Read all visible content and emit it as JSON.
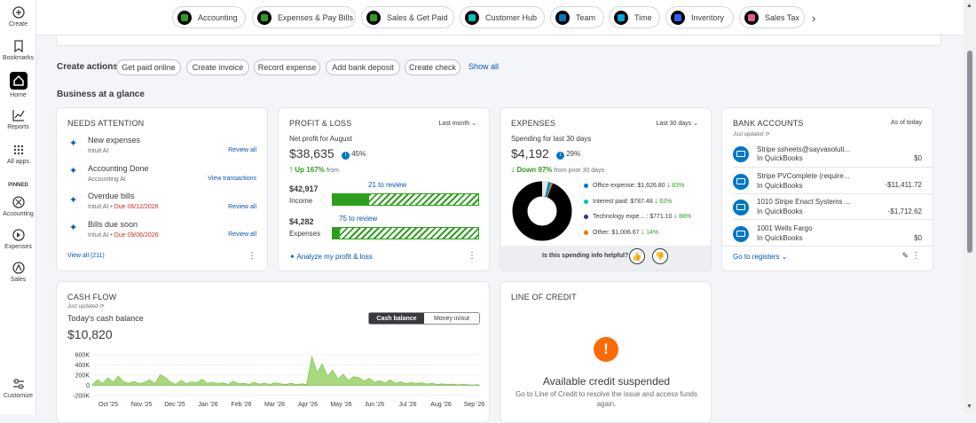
{
  "sidebar": {
    "items": [
      {
        "label": "Create",
        "icon": "plus-circle-icon"
      },
      {
        "label": "Bookmarks",
        "icon": "bookmark-icon"
      },
      {
        "label": "Home",
        "icon": "home-icon"
      },
      {
        "label": "Reports",
        "icon": "reports-icon"
      },
      {
        "label": "All apps",
        "icon": "grid-icon"
      }
    ],
    "pinned_label": "PINNED",
    "pinned": [
      {
        "label": "Accounting",
        "icon": "accounting-icon"
      },
      {
        "label": "Expenses",
        "icon": "expenses-icon"
      },
      {
        "label": "Sales",
        "icon": "sales-icon"
      }
    ],
    "customize": "Customize"
  },
  "topnav": {
    "pills": [
      {
        "label": "Accounting",
        "color": "#2ca01c"
      },
      {
        "label": "Expenses & Pay Bills",
        "color": "#2ca01c"
      },
      {
        "label": "Sales & Get Paid",
        "color": "#2ca01c"
      },
      {
        "label": "Customer Hub",
        "color": "#00c1bf"
      },
      {
        "label": "Team",
        "color": "#0077c5"
      },
      {
        "label": "Time",
        "color": "#00a6e4"
      },
      {
        "label": "Inventory",
        "color": "#3d5afe"
      },
      {
        "label": "Sales Tax",
        "color": "#e35b8f"
      }
    ]
  },
  "create_actions": {
    "label": "Create actions",
    "buttons": [
      "Get paid online",
      "Create invoice",
      "Record expense",
      "Add bank deposit",
      "Create check"
    ],
    "show_all": "Show all"
  },
  "glance_title": "Business at a glance",
  "needs_attention": {
    "title": "NEEDS ATTENTION",
    "items": [
      {
        "title": "New expenses",
        "sub": "Intuit AI",
        "due": "",
        "action": "Review all"
      },
      {
        "title": "Accounting Done",
        "sub": "Accounting AI",
        "due": "",
        "action": "View transactions"
      },
      {
        "title": "Overdue bills",
        "sub": "Intuit AI",
        "due": "Due 06/12/2026",
        "action": "Review all"
      },
      {
        "title": "Bills due soon",
        "sub": "Intuit AI",
        "due": "Due 09/06/2026",
        "action": "Review all"
      }
    ],
    "view_all": "View all (211)"
  },
  "profit_loss": {
    "title": "PROFIT & LOSS",
    "period": "Last month",
    "subtitle": "Net profit for August",
    "amount": "$38,635",
    "pct": "45%",
    "change": "Up 167%",
    "change_suffix": "from",
    "income_amount": "$42,917",
    "income_label": "Income",
    "income_review": "21 to review",
    "expenses_amount": "$4,282",
    "expenses_label": "Expenses",
    "expenses_review": "75 to review",
    "analyze": "Analyze my profit & loss"
  },
  "expenses": {
    "title": "EXPENSES",
    "period": "Last 30 days",
    "subtitle": "Spending for last 30 days",
    "amount": "$4,192",
    "pct": "29%",
    "change": "Down 97%",
    "change_suffix": "from prior 30 days",
    "legend": [
      {
        "label": "Office expense: $1,626.80",
        "pct": "83%",
        "color": "#0077c5"
      },
      {
        "label": "Interest paid: $787.48",
        "pct": "62%",
        "color": "#00c1bf"
      },
      {
        "label": "Technology expe... : $771.10",
        "pct": "88%",
        "color": "#3d2a8f"
      },
      {
        "label": "Other: $1,006.67",
        "pct": "14%",
        "color": "#ff6a00"
      }
    ],
    "helpful": "Is this spending info helpful?"
  },
  "bank_accounts": {
    "title": "BANK ACCOUNTS",
    "as_of": "As of today",
    "updated": "Just updated",
    "accounts": [
      {
        "name": "Stripe ssheets@sayvasoluti...",
        "source": "In QuickBooks",
        "balance": "$0"
      },
      {
        "name": "Stripe PVComplete (require...",
        "source": "In QuickBooks",
        "balance": "-$11,411.72"
      },
      {
        "name": "1010 Stripe Enact Systems ...",
        "source": "In QuickBooks",
        "balance": "-$1,712.62"
      },
      {
        "name": "1001 Wells Fargo",
        "source": "In QuickBooks",
        "balance": "$0"
      }
    ],
    "registers": "Go to registers"
  },
  "cash_flow": {
    "title": "CASH FLOW",
    "updated": "Just updated",
    "subtitle": "Today's cash balance",
    "amount": "$10,820",
    "toggle_on": "Cash balance",
    "toggle_off": "Money in/out"
  },
  "line_of_credit": {
    "title": "LINE OF CREDIT",
    "heading": "Available credit suspended",
    "message_1": "Go to Line of Credit to resolve the issue and access funds",
    "message_2": "again."
  },
  "chart_data": {
    "type": "area",
    "yticks": [
      "600K",
      "400K",
      "200K",
      "0",
      "-200K"
    ],
    "ylim": [
      -200000,
      600000
    ],
    "xticks": [
      "Oct '25",
      "Nov '25",
      "Dec '25",
      "Jan '26",
      "Feb '26",
      "Mar '26",
      "Apr '26",
      "May '26",
      "Jun '26",
      "Jul '26",
      "Aug '26",
      "Sep '26"
    ],
    "values": [
      10000,
      110000,
      40000,
      150000,
      60000,
      180000,
      70000,
      40000,
      80000,
      30000,
      60000,
      110000,
      30000,
      210000,
      150000,
      60000,
      20000,
      100000,
      30000,
      70000,
      50000,
      120000,
      40000,
      60000,
      30000,
      50000,
      20000,
      80000,
      30000,
      40000,
      20000,
      60000,
      25000,
      40000,
      20000,
      50000,
      30000,
      20000,
      40000,
      15000,
      30000,
      20000,
      560000,
      250000,
      420000,
      180000,
      300000,
      120000,
      220000,
      90000,
      170000,
      150000,
      80000,
      140000,
      60000,
      90000,
      50000,
      110000,
      40000,
      70000,
      30000,
      60000,
      35000,
      50000,
      25000,
      40000,
      20000,
      30000,
      15000,
      25000,
      10000,
      20000,
      10000,
      8000,
      12000
    ]
  }
}
